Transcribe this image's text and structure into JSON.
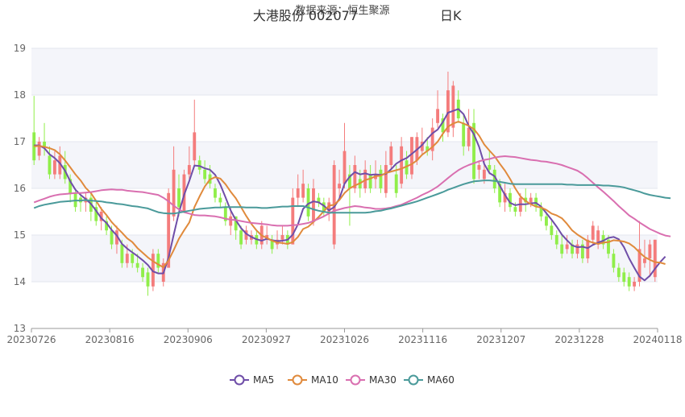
{
  "header": {
    "title": "大港股份 002077",
    "title_suffix": "日K",
    "subtitle": "数据来源：恒生聚源"
  },
  "chart_data": {
    "type": "candlestick",
    "yticks": [
      13,
      14,
      15,
      16,
      17,
      18,
      19
    ],
    "ylim": [
      13,
      19
    ],
    "xtick_labels": [
      "20230726",
      "20230816",
      "20230906",
      "20230927",
      "20231026",
      "20231116",
      "20231207",
      "20231228",
      "20240118"
    ],
    "colors": {
      "up": "#f47c7c",
      "down": "#90ee4a"
    },
    "candles": [
      [
        17.2,
        16.6,
        17.98,
        16.5
      ],
      [
        16.7,
        17.0,
        17.1,
        16.6
      ],
      [
        17.0,
        16.9,
        17.4,
        16.7
      ],
      [
        16.7,
        16.3,
        16.9,
        16.2
      ],
      [
        16.3,
        16.6,
        16.8,
        16.2
      ],
      [
        16.3,
        16.7,
        16.9,
        16.2
      ],
      [
        16.5,
        16.2,
        16.8,
        16.1
      ],
      [
        16.2,
        15.9,
        16.3,
        15.7
      ],
      [
        15.9,
        15.6,
        16.0,
        15.5
      ],
      [
        15.8,
        15.7,
        15.9,
        15.5
      ],
      [
        15.7,
        15.8,
        15.9,
        15.5
      ],
      [
        15.8,
        15.5,
        15.9,
        15.3
      ],
      [
        15.6,
        15.3,
        15.7,
        15.2
      ],
      [
        15.3,
        15.5,
        15.6,
        15.1
      ],
      [
        15.3,
        15.1,
        15.4,
        15.0
      ],
      [
        15.1,
        14.8,
        15.2,
        14.7
      ],
      [
        14.8,
        15.1,
        15.2,
        14.6
      ],
      [
        14.8,
        14.4,
        14.9,
        14.3
      ],
      [
        14.4,
        14.6,
        14.8,
        14.3
      ],
      [
        14.6,
        14.4,
        14.7,
        14.3
      ],
      [
        14.4,
        14.3,
        14.6,
        14.2
      ],
      [
        14.3,
        14.1,
        14.4,
        14.0
      ],
      [
        14.2,
        13.9,
        14.3,
        13.7
      ],
      [
        13.9,
        14.6,
        14.7,
        13.8
      ],
      [
        14.6,
        14.3,
        14.7,
        14.2
      ],
      [
        14.0,
        14.4,
        14.5,
        13.9
      ],
      [
        14.3,
        15.9,
        16.0,
        14.3
      ],
      [
        15.4,
        16.4,
        16.9,
        15.3
      ],
      [
        16.0,
        15.6,
        16.3,
        15.4
      ],
      [
        15.5,
        16.3,
        16.4,
        15.5
      ],
      [
        16.3,
        16.5,
        16.9,
        16.2
      ],
      [
        16.6,
        17.2,
        17.9,
        16.5
      ],
      [
        16.6,
        16.4,
        16.7,
        16.3
      ],
      [
        16.4,
        16.2,
        16.6,
        16.1
      ],
      [
        16.3,
        16.1,
        16.5,
        16.0
      ],
      [
        16.0,
        15.8,
        16.1,
        15.7
      ],
      [
        15.8,
        15.7,
        15.9,
        15.6
      ],
      [
        15.6,
        15.3,
        15.7,
        15.2
      ],
      [
        15.2,
        15.4,
        15.6,
        15.0
      ],
      [
        15.4,
        15.1,
        15.4,
        14.9
      ],
      [
        15.1,
        14.8,
        15.2,
        14.7
      ],
      [
        14.9,
        15.1,
        15.2,
        14.8
      ],
      [
        14.9,
        15.0,
        15.1,
        14.8
      ],
      [
        15.0,
        14.8,
        15.1,
        14.7
      ],
      [
        14.8,
        15.2,
        15.3,
        14.7
      ],
      [
        14.9,
        15.0,
        15.2,
        14.8
      ],
      [
        14.9,
        14.7,
        15.0,
        14.6
      ],
      [
        14.8,
        14.9,
        15.1,
        14.7
      ],
      [
        14.9,
        15.0,
        15.2,
        14.8
      ],
      [
        15.0,
        14.8,
        15.1,
        14.7
      ],
      [
        14.8,
        15.8,
        16.0,
        14.8
      ],
      [
        15.8,
        16.0,
        16.3,
        15.6
      ],
      [
        15.8,
        16.1,
        16.4,
        15.7
      ],
      [
        16.0,
        15.4,
        16.1,
        15.3
      ],
      [
        15.3,
        16.0,
        16.2,
        15.2
      ],
      [
        15.8,
        15.7,
        15.9,
        15.6
      ],
      [
        15.7,
        15.5,
        15.8,
        15.4
      ],
      [
        15.5,
        15.7,
        15.8,
        15.3
      ],
      [
        14.8,
        16.5,
        16.6,
        14.7
      ],
      [
        16.0,
        16.1,
        16.4,
        15.8
      ],
      [
        16.1,
        16.8,
        17.4,
        16.0
      ],
      [
        16.3,
        16.0,
        16.5,
        15.2
      ],
      [
        16.0,
        16.5,
        16.7,
        15.9
      ],
      [
        16.2,
        16.0,
        16.4,
        15.8
      ],
      [
        16.0,
        16.4,
        16.6,
        15.9
      ],
      [
        16.3,
        16.0,
        16.5,
        15.9
      ],
      [
        16.2,
        16.3,
        16.6,
        16.0
      ],
      [
        16.4,
        16.0,
        16.5,
        15.9
      ],
      [
        15.9,
        16.5,
        16.8,
        15.8
      ],
      [
        16.5,
        16.9,
        17.0,
        16.4
      ],
      [
        16.3,
        15.9,
        16.5,
        15.8
      ],
      [
        16.1,
        16.9,
        17.1,
        16.0
      ],
      [
        16.6,
        16.3,
        16.8,
        16.2
      ],
      [
        16.3,
        17.1,
        17.1,
        16.2
      ],
      [
        16.6,
        17.1,
        17.2,
        16.5
      ],
      [
        16.8,
        17.0,
        17.3,
        16.7
      ],
      [
        16.9,
        16.8,
        17.1,
        16.7
      ],
      [
        16.8,
        17.3,
        17.5,
        16.6
      ],
      [
        17.4,
        17.7,
        18.1,
        17.3
      ],
      [
        17.5,
        17.2,
        17.6,
        17.0
      ],
      [
        17.2,
        18.1,
        18.5,
        17.1
      ],
      [
        17.3,
        18.2,
        18.3,
        17.1
      ],
      [
        17.9,
        17.5,
        18.1,
        17.4
      ],
      [
        17.4,
        16.9,
        17.6,
        16.7
      ],
      [
        16.9,
        17.3,
        17.7,
        16.8
      ],
      [
        17.4,
        16.2,
        17.7,
        16.1
      ],
      [
        16.4,
        16.5,
        16.6,
        16.2
      ],
      [
        16.2,
        16.4,
        16.6,
        16.1
      ],
      [
        16.5,
        16.4,
        16.8,
        16.3
      ],
      [
        16.4,
        16.0,
        16.5,
        15.9
      ],
      [
        16.1,
        15.7,
        16.2,
        15.6
      ],
      [
        15.7,
        15.9,
        16.1,
        15.5
      ],
      [
        15.9,
        15.6,
        16.0,
        15.5
      ],
      [
        15.6,
        15.5,
        15.7,
        15.4
      ],
      [
        15.5,
        15.8,
        15.9,
        15.4
      ],
      [
        15.8,
        15.7,
        16.0,
        15.5
      ],
      [
        15.7,
        15.8,
        15.9,
        15.6
      ],
      [
        15.8,
        15.6,
        15.9,
        15.5
      ],
      [
        15.6,
        15.4,
        15.7,
        15.3
      ],
      [
        15.4,
        15.2,
        15.5,
        15.1
      ],
      [
        15.2,
        15.0,
        15.3,
        14.9
      ],
      [
        15.0,
        14.8,
        15.1,
        14.7
      ],
      [
        14.8,
        14.6,
        15.0,
        14.5
      ],
      [
        14.7,
        14.8,
        15.0,
        14.6
      ],
      [
        14.8,
        14.6,
        14.9,
        14.5
      ],
      [
        14.6,
        14.8,
        14.9,
        14.5
      ],
      [
        14.8,
        14.5,
        14.9,
        14.4
      ],
      [
        14.5,
        14.9,
        15.0,
        14.4
      ],
      [
        14.9,
        15.2,
        15.3,
        14.8
      ],
      [
        14.8,
        15.1,
        15.2,
        14.7
      ],
      [
        15.0,
        14.8,
        15.1,
        14.7
      ],
      [
        14.9,
        14.6,
        15.0,
        14.5
      ],
      [
        14.6,
        14.3,
        14.7,
        14.2
      ],
      [
        14.3,
        14.1,
        14.4,
        14.0
      ],
      [
        14.2,
        14.0,
        14.3,
        13.9
      ],
      [
        14.1,
        13.9,
        14.2,
        13.8
      ],
      [
        13.9,
        14.0,
        14.1,
        13.8
      ],
      [
        14.0,
        14.7,
        15.3,
        13.9
      ],
      [
        14.4,
        14.5,
        14.9,
        14.3
      ],
      [
        14.5,
        14.8,
        14.9,
        14.1
      ],
      [
        14.1,
        14.9,
        14.9,
        14.0
      ]
    ],
    "series": [
      {
        "name": "MA5",
        "color": "#6f4ea8",
        "values": [
          16.92,
          16.92,
          16.86,
          16.73,
          16.65,
          16.54,
          16.38,
          16.15,
          15.97,
          15.86,
          15.77,
          15.67,
          15.52,
          15.36,
          15.26,
          15.11,
          14.99,
          14.81,
          14.71,
          14.63,
          14.55,
          14.46,
          14.36,
          14.22,
          14.18,
          14.18,
          14.52,
          15.01,
          15.48,
          15.86,
          16.16,
          16.49,
          16.48,
          16.43,
          16.4,
          16.29,
          16.08,
          15.81,
          15.53,
          15.32,
          15.15,
          15.03,
          14.96,
          14.91,
          14.88,
          14.92,
          14.89,
          14.87,
          14.88,
          14.9,
          15.01,
          15.23,
          15.56,
          15.67,
          15.72,
          15.7,
          15.63,
          15.53,
          15.6,
          15.78,
          16.1,
          16.25,
          16.35,
          16.3,
          16.32,
          16.29,
          16.3,
          16.29,
          16.31,
          16.41,
          16.53,
          16.6,
          16.65,
          16.74,
          16.83,
          16.93,
          17.06,
          17.18,
          17.26,
          17.42,
          17.62,
          17.66,
          17.7,
          17.59,
          17.34,
          17.16,
          16.89,
          16.52,
          16.33,
          16.26,
          16.06,
          15.86,
          15.69,
          15.64,
          15.66,
          15.66,
          15.68,
          15.69,
          15.61,
          15.47,
          15.33,
          15.18,
          15.01,
          14.89,
          14.78,
          14.74,
          14.75,
          14.72,
          14.79,
          14.84,
          14.88,
          14.94,
          14.96,
          14.91,
          14.74,
          14.5,
          14.3,
          14.11,
          14.03,
          14.13,
          14.28,
          14.42,
          14.54
        ]
      },
      {
        "name": "MA10",
        "color": "#e08a3c",
        "values": [
          16.9,
          16.91,
          16.89,
          16.86,
          16.82,
          16.73,
          16.6,
          16.45,
          16.3,
          16.17,
          16.01,
          15.9,
          15.73,
          15.56,
          15.43,
          15.28,
          15.16,
          15.05,
          14.93,
          14.85,
          14.72,
          14.62,
          14.52,
          14.44,
          14.37,
          14.31,
          14.46,
          14.68,
          14.92,
          15.1,
          15.27,
          15.6,
          15.83,
          16.04,
          16.19,
          16.24,
          16.21,
          16.09,
          15.93,
          15.79,
          15.6,
          15.41,
          15.24,
          15.1,
          14.99,
          14.94,
          14.88,
          14.84,
          14.83,
          14.81,
          14.85,
          14.96,
          15.13,
          15.18,
          15.28,
          15.39,
          15.51,
          15.63,
          15.65,
          15.75,
          15.9,
          16.0,
          16.06,
          16.11,
          16.18,
          16.21,
          16.26,
          16.27,
          16.33,
          16.36,
          16.39,
          16.42,
          16.47,
          16.52,
          16.6,
          16.72,
          16.8,
          16.89,
          17.0,
          17.17,
          17.32,
          17.39,
          17.43,
          17.39,
          17.34,
          17.27,
          17.13,
          16.94,
          16.81,
          16.69,
          16.53,
          16.38,
          16.2,
          16.0,
          15.83,
          15.73,
          15.66,
          15.61,
          15.59,
          15.54,
          15.46,
          15.42,
          15.36,
          15.24,
          15.1,
          15.01,
          14.94,
          14.87,
          14.84,
          14.81,
          14.84,
          14.85,
          14.89,
          14.88,
          14.86,
          14.82,
          14.74,
          14.63,
          14.53,
          14.47,
          14.42,
          14.41,
          14.38
        ]
      },
      {
        "name": "MA30",
        "color": "#d96fb0",
        "values": [
          15.7,
          15.74,
          15.78,
          15.82,
          15.85,
          15.87,
          15.88,
          15.89,
          15.9,
          15.9,
          15.91,
          15.92,
          15.94,
          15.96,
          15.97,
          15.98,
          15.97,
          15.97,
          15.95,
          15.94,
          15.93,
          15.92,
          15.9,
          15.88,
          15.86,
          15.8,
          15.72,
          15.63,
          15.55,
          15.49,
          15.46,
          15.43,
          15.42,
          15.42,
          15.41,
          15.4,
          15.38,
          15.35,
          15.33,
          15.32,
          15.3,
          15.28,
          15.26,
          15.25,
          15.24,
          15.23,
          15.21,
          15.2,
          15.2,
          15.2,
          15.21,
          15.22,
          15.24,
          15.26,
          15.3,
          15.35,
          15.4,
          15.46,
          15.52,
          15.55,
          15.58,
          15.6,
          15.62,
          15.61,
          15.59,
          15.58,
          15.56,
          15.56,
          15.57,
          15.59,
          15.62,
          15.65,
          15.7,
          15.75,
          15.8,
          15.86,
          15.91,
          15.97,
          16.04,
          16.13,
          16.22,
          16.31,
          16.39,
          16.45,
          16.5,
          16.54,
          16.58,
          16.61,
          16.63,
          16.66,
          16.68,
          16.69,
          16.68,
          16.67,
          16.65,
          16.63,
          16.61,
          16.6,
          16.58,
          16.57,
          16.55,
          16.53,
          16.5,
          16.46,
          16.42,
          16.38,
          16.31,
          16.22,
          16.12,
          16.02,
          15.93,
          15.83,
          15.73,
          15.62,
          15.52,
          15.42,
          15.35,
          15.27,
          15.2,
          15.13,
          15.08,
          15.03,
          14.99,
          14.97
        ]
      },
      {
        "name": "MA60",
        "color": "#4a9a9a",
        "values": [
          15.58,
          15.62,
          15.65,
          15.67,
          15.69,
          15.71,
          15.72,
          15.73,
          15.74,
          15.74,
          15.75,
          15.74,
          15.73,
          15.72,
          15.7,
          15.69,
          15.67,
          15.66,
          15.64,
          15.62,
          15.61,
          15.59,
          15.57,
          15.53,
          15.49,
          15.47,
          15.46,
          15.46,
          15.48,
          15.5,
          15.52,
          15.54,
          15.56,
          15.57,
          15.58,
          15.59,
          15.59,
          15.6,
          15.6,
          15.6,
          15.6,
          15.59,
          15.59,
          15.59,
          15.58,
          15.58,
          15.59,
          15.6,
          15.61,
          15.61,
          15.62,
          15.62,
          15.62,
          15.59,
          15.55,
          15.52,
          15.5,
          15.48,
          15.48,
          15.48,
          15.48,
          15.48,
          15.48,
          15.48,
          15.48,
          15.49,
          15.51,
          15.52,
          15.55,
          15.57,
          15.6,
          15.63,
          15.66,
          15.69,
          15.72,
          15.76,
          15.8,
          15.84,
          15.88,
          15.92,
          15.97,
          16.01,
          16.05,
          16.09,
          16.12,
          16.15,
          16.16,
          16.17,
          16.17,
          16.16,
          16.14,
          16.12,
          16.1,
          16.09,
          16.09,
          16.09,
          16.09,
          16.09,
          16.09,
          16.09,
          16.09,
          16.09,
          16.09,
          16.08,
          16.08,
          16.07,
          16.07,
          16.07,
          16.07,
          16.07,
          16.06,
          16.06,
          16.05,
          16.04,
          16.02,
          15.99,
          15.96,
          15.93,
          15.89,
          15.86,
          15.84,
          15.82,
          15.8,
          15.79
        ]
      }
    ],
    "legend": [
      {
        "name": "MA5",
        "color": "#6f4ea8"
      },
      {
        "name": "MA10",
        "color": "#e08a3c"
      },
      {
        "name": "MA30",
        "color": "#d96fb0"
      },
      {
        "name": "MA60",
        "color": "#4a9a9a"
      }
    ]
  }
}
